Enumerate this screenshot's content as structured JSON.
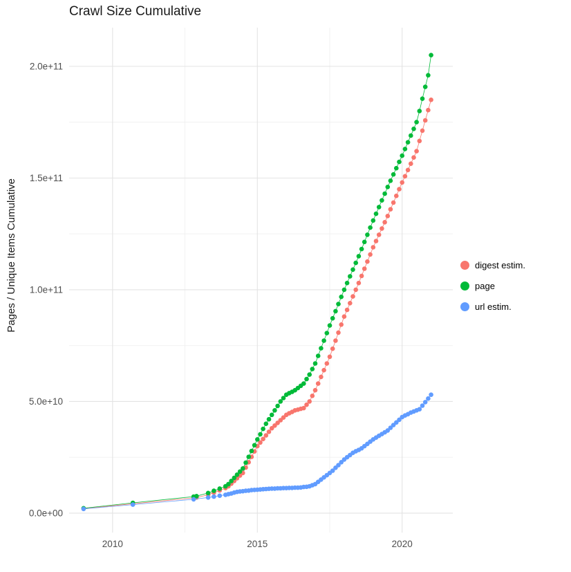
{
  "chart_data": {
    "type": "scatter",
    "title": "Crawl Size Cumulative",
    "xlabel": "",
    "ylabel": "Pages / Unique Items Cumulative",
    "value_units": "billions (1e9)",
    "xlim": [
      2008.5,
      2021.75
    ],
    "ylim": [
      -8.7,
      217.3
    ],
    "x_ticks": {
      "values": [
        2010,
        2015,
        2020
      ],
      "labels": [
        "2010",
        "2015",
        "2020"
      ]
    },
    "y_ticks": {
      "values": [
        0,
        50,
        100,
        150,
        200
      ],
      "labels": [
        "0.0e+00",
        "5.0e+10",
        "1.0e+11",
        "1.5e+11",
        "2.0e+11"
      ]
    },
    "grid": {
      "major": true,
      "minor": true,
      "major_color": "#e3e3e3",
      "minor_color": "#f0f0f0"
    },
    "legend_position": "right",
    "series": [
      {
        "name": "digest estim.",
        "color": "#F8766D",
        "points": [
          [
            2009.0,
            2.0
          ],
          [
            2010.7,
            4.2
          ],
          [
            2012.8,
            6.8
          ],
          [
            2012.9,
            7.0
          ],
          [
            2013.3,
            8.2
          ],
          [
            2013.5,
            9.2
          ],
          [
            2013.7,
            10.2
          ],
          [
            2013.9,
            11.2
          ],
          [
            2014.0,
            12.0
          ],
          [
            2014.1,
            13.2
          ],
          [
            2014.2,
            14.4
          ],
          [
            2014.3,
            15.6
          ],
          [
            2014.4,
            16.8
          ],
          [
            2014.5,
            18.0
          ],
          [
            2014.6,
            20.4
          ],
          [
            2014.7,
            22.8
          ],
          [
            2014.8,
            25.2
          ],
          [
            2014.9,
            27.6
          ],
          [
            2015.0,
            30.0
          ],
          [
            2015.1,
            31.6
          ],
          [
            2015.2,
            33.2
          ],
          [
            2015.3,
            34.8
          ],
          [
            2015.4,
            36.4
          ],
          [
            2015.5,
            38.0
          ],
          [
            2015.6,
            39.2
          ],
          [
            2015.7,
            40.4
          ],
          [
            2015.8,
            41.6
          ],
          [
            2015.9,
            42.8
          ],
          [
            2016.0,
            44.0
          ],
          [
            2016.1,
            44.7
          ],
          [
            2016.2,
            45.3
          ],
          [
            2016.3,
            46.0
          ],
          [
            2016.4,
            46.3
          ],
          [
            2016.5,
            46.7
          ],
          [
            2016.6,
            47.0
          ],
          [
            2016.7,
            48.5
          ],
          [
            2016.8,
            50.0
          ],
          [
            2016.9,
            52.5
          ],
          [
            2017.0,
            55.0
          ],
          [
            2017.1,
            58.0
          ],
          [
            2017.2,
            61.0
          ],
          [
            2017.3,
            64.0
          ],
          [
            2017.4,
            67.0
          ],
          [
            2017.5,
            70.0
          ],
          [
            2017.6,
            73.6
          ],
          [
            2017.7,
            77.2
          ],
          [
            2017.8,
            80.8
          ],
          [
            2017.9,
            84.4
          ],
          [
            2018.0,
            88.0
          ],
          [
            2018.1,
            91.0
          ],
          [
            2018.2,
            94.0
          ],
          [
            2018.3,
            97.0
          ],
          [
            2018.4,
            100.0
          ],
          [
            2018.5,
            103.0
          ],
          [
            2018.6,
            106.2
          ],
          [
            2018.7,
            109.4
          ],
          [
            2018.8,
            112.6
          ],
          [
            2018.9,
            115.8
          ],
          [
            2019.0,
            119.0
          ],
          [
            2019.1,
            121.8
          ],
          [
            2019.2,
            124.6
          ],
          [
            2019.3,
            127.4
          ],
          [
            2019.4,
            130.2
          ],
          [
            2019.5,
            133.0
          ],
          [
            2019.6,
            136.0
          ],
          [
            2019.7,
            139.0
          ],
          [
            2019.8,
            142.0
          ],
          [
            2019.9,
            145.0
          ],
          [
            2020.0,
            148.0
          ],
          [
            2020.1,
            150.8
          ],
          [
            2020.2,
            153.6
          ],
          [
            2020.3,
            156.4
          ],
          [
            2020.4,
            159.2
          ],
          [
            2020.5,
            162.0
          ],
          [
            2020.6,
            166.6
          ],
          [
            2020.7,
            171.2
          ],
          [
            2020.8,
            175.8
          ],
          [
            2020.9,
            180.4
          ],
          [
            2021.0,
            185.0
          ]
        ]
      },
      {
        "name": "page",
        "color": "#00BA38",
        "points": [
          [
            2009.0,
            2.2
          ],
          [
            2010.7,
            4.6
          ],
          [
            2012.8,
            7.4
          ],
          [
            2012.9,
            7.6
          ],
          [
            2013.3,
            9.0
          ],
          [
            2013.5,
            10.0
          ],
          [
            2013.7,
            11.0
          ],
          [
            2013.9,
            12.0
          ],
          [
            2014.0,
            13.0
          ],
          [
            2014.1,
            14.4
          ],
          [
            2014.2,
            15.8
          ],
          [
            2014.3,
            17.2
          ],
          [
            2014.4,
            18.6
          ],
          [
            2014.5,
            20.0
          ],
          [
            2014.6,
            22.6
          ],
          [
            2014.7,
            25.2
          ],
          [
            2014.8,
            27.8
          ],
          [
            2014.9,
            30.4
          ],
          [
            2015.0,
            33.0
          ],
          [
            2015.1,
            35.3
          ],
          [
            2015.2,
            37.7
          ],
          [
            2015.3,
            40.0
          ],
          [
            2015.4,
            42.0
          ],
          [
            2015.5,
            44.0
          ],
          [
            2015.6,
            46.0
          ],
          [
            2015.7,
            48.0
          ],
          [
            2015.8,
            50.0
          ],
          [
            2015.9,
            51.5
          ],
          [
            2016.0,
            53.0
          ],
          [
            2016.1,
            53.7
          ],
          [
            2016.2,
            54.3
          ],
          [
            2016.3,
            55.0
          ],
          [
            2016.4,
            56.0
          ],
          [
            2016.5,
            57.0
          ],
          [
            2016.6,
            58.0
          ],
          [
            2016.7,
            60.0
          ],
          [
            2016.8,
            62.0
          ],
          [
            2016.9,
            64.5
          ],
          [
            2017.0,
            67.0
          ],
          [
            2017.1,
            70.4
          ],
          [
            2017.2,
            73.8
          ],
          [
            2017.3,
            77.2
          ],
          [
            2017.4,
            80.6
          ],
          [
            2017.5,
            84.0
          ],
          [
            2017.6,
            87.2
          ],
          [
            2017.7,
            90.4
          ],
          [
            2017.8,
            93.6
          ],
          [
            2017.9,
            96.8
          ],
          [
            2018.0,
            100.0
          ],
          [
            2018.1,
            103.0
          ],
          [
            2018.2,
            106.0
          ],
          [
            2018.3,
            109.0
          ],
          [
            2018.4,
            112.0
          ],
          [
            2018.5,
            115.0
          ],
          [
            2018.6,
            118.2
          ],
          [
            2018.7,
            121.4
          ],
          [
            2018.8,
            124.6
          ],
          [
            2018.9,
            127.8
          ],
          [
            2019.0,
            131.0
          ],
          [
            2019.1,
            134.0
          ],
          [
            2019.2,
            137.0
          ],
          [
            2019.3,
            140.0
          ],
          [
            2019.4,
            143.0
          ],
          [
            2019.5,
            146.0
          ],
          [
            2019.6,
            148.8
          ],
          [
            2019.7,
            151.6
          ],
          [
            2019.8,
            154.4
          ],
          [
            2019.9,
            157.2
          ],
          [
            2020.0,
            160.0
          ],
          [
            2020.1,
            163.0
          ],
          [
            2020.2,
            166.0
          ],
          [
            2020.3,
            169.0
          ],
          [
            2020.4,
            172.0
          ],
          [
            2020.5,
            175.0
          ],
          [
            2020.6,
            180.0
          ],
          [
            2020.7,
            185.5
          ],
          [
            2020.8,
            190.8
          ],
          [
            2020.9,
            196.0
          ],
          [
            2021.0,
            205.0
          ]
        ]
      },
      {
        "name": "url estim.",
        "color": "#619CFF",
        "points": [
          [
            2009.0,
            1.9
          ],
          [
            2010.7,
            3.8
          ],
          [
            2012.8,
            6.2
          ],
          [
            2013.3,
            7.0
          ],
          [
            2013.5,
            7.4
          ],
          [
            2013.7,
            7.8
          ],
          [
            2013.9,
            8.2
          ],
          [
            2014.0,
            8.5
          ],
          [
            2014.1,
            8.8
          ],
          [
            2014.2,
            9.2
          ],
          [
            2014.3,
            9.5
          ],
          [
            2014.4,
            9.7
          ],
          [
            2014.5,
            9.8
          ],
          [
            2014.6,
            10.0
          ],
          [
            2014.7,
            10.1
          ],
          [
            2014.8,
            10.3
          ],
          [
            2014.9,
            10.4
          ],
          [
            2015.0,
            10.5
          ],
          [
            2015.1,
            10.6
          ],
          [
            2015.2,
            10.7
          ],
          [
            2015.3,
            10.8
          ],
          [
            2015.4,
            10.9
          ],
          [
            2015.5,
            11.0
          ],
          [
            2015.6,
            11.0
          ],
          [
            2015.7,
            11.1
          ],
          [
            2015.8,
            11.1
          ],
          [
            2015.9,
            11.2
          ],
          [
            2016.0,
            11.2
          ],
          [
            2016.1,
            11.3
          ],
          [
            2016.2,
            11.3
          ],
          [
            2016.3,
            11.4
          ],
          [
            2016.4,
            11.4
          ],
          [
            2016.5,
            11.5
          ],
          [
            2016.6,
            11.7
          ],
          [
            2016.7,
            11.8
          ],
          [
            2016.8,
            12.0
          ],
          [
            2016.9,
            12.5
          ],
          [
            2017.0,
            13.0
          ],
          [
            2017.1,
            14.0
          ],
          [
            2017.2,
            15.0
          ],
          [
            2017.3,
            16.0
          ],
          [
            2017.4,
            17.0
          ],
          [
            2017.5,
            18.0
          ],
          [
            2017.6,
            19.0
          ],
          [
            2017.7,
            20.3
          ],
          [
            2017.8,
            21.5
          ],
          [
            2017.9,
            22.8
          ],
          [
            2018.0,
            24.0
          ],
          [
            2018.1,
            25.0
          ],
          [
            2018.2,
            26.0
          ],
          [
            2018.3,
            27.0
          ],
          [
            2018.4,
            27.7
          ],
          [
            2018.5,
            28.3
          ],
          [
            2018.6,
            29.0
          ],
          [
            2018.7,
            30.0
          ],
          [
            2018.8,
            31.0
          ],
          [
            2018.9,
            32.0
          ],
          [
            2019.0,
            33.0
          ],
          [
            2019.1,
            33.8
          ],
          [
            2019.2,
            34.6
          ],
          [
            2019.3,
            35.4
          ],
          [
            2019.4,
            36.2
          ],
          [
            2019.5,
            37.0
          ],
          [
            2019.6,
            38.2
          ],
          [
            2019.7,
            39.4
          ],
          [
            2019.8,
            40.6
          ],
          [
            2019.9,
            41.8
          ],
          [
            2020.0,
            43.0
          ],
          [
            2020.1,
            43.7
          ],
          [
            2020.2,
            44.3
          ],
          [
            2020.3,
            45.0
          ],
          [
            2020.4,
            45.5
          ],
          [
            2020.5,
            46.0
          ],
          [
            2020.6,
            46.5
          ],
          [
            2020.7,
            48.1
          ],
          [
            2020.8,
            49.7
          ],
          [
            2020.9,
            51.3
          ],
          [
            2021.0,
            53.0
          ]
        ]
      }
    ]
  }
}
